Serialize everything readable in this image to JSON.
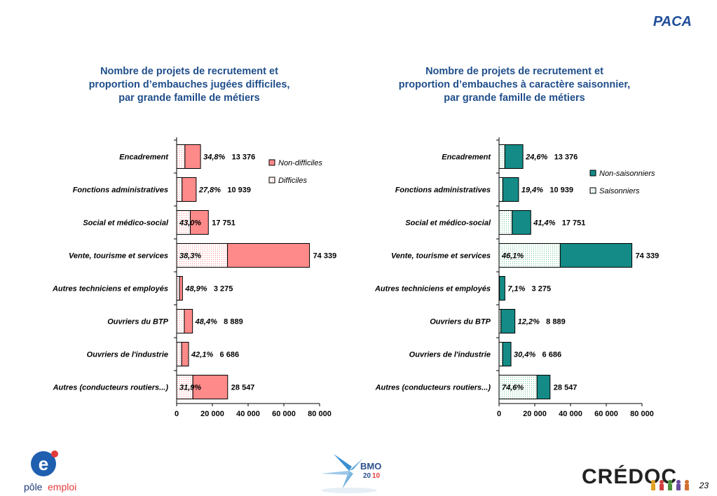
{
  "page": {
    "title": "PACA",
    "page_number": "23"
  },
  "logos": {
    "pole_emploi": {
      "text_line1": "pôle",
      "text_line2": "emploi",
      "icon": "pole-emploi-logo"
    },
    "bmo": {
      "text": "BMO",
      "year_a": "20",
      "year_b": "10",
      "icon": "bmo-logo"
    },
    "credoc": {
      "text": "CRÉDOC",
      "icon": "credoc-logo"
    }
  },
  "colors": {
    "difficult_fill": "#ff8a8a",
    "seasonal_fill": "#148b86",
    "light_pattern": "#ffffff"
  },
  "chart_data": [
    {
      "type": "bar",
      "orientation": "horizontal",
      "stacked": true,
      "title": "Nombre de projets de recrutement et\nproportion d’embauches jugées difficiles,\npar grande famille de métiers",
      "categories": [
        "Encadrement",
        "Fonctions administratives",
        "Social et médico-social",
        "Vente, tourisme et services",
        "Autres techniciens et employés",
        "Ouvriers du BTP",
        "Ouvriers de l'industrie",
        "Autres (conducteurs routiers...)"
      ],
      "totals": [
        13376,
        10939,
        17751,
        74339,
        3275,
        8889,
        6686,
        28547
      ],
      "total_labels": [
        "13 376",
        "10 939",
        "17 751",
        "74 339",
        "3 275",
        "8 889",
        "6 686",
        "28 547"
      ],
      "percent_labels": [
        "34,8%",
        "27,8%",
        "43,0%",
        "38,3%",
        "48,9%",
        "48,4%",
        "42,1%",
        "31,9%"
      ],
      "percent_values": [
        34.8,
        27.8,
        43.0,
        38.3,
        48.9,
        48.4,
        42.1,
        31.9
      ],
      "series": [
        {
          "name": "Non-difficiles",
          "style": "solid",
          "color": "#ff8a8a"
        },
        {
          "name": "Difficiles",
          "style": "pattern",
          "color": "#ffffff"
        }
      ],
      "xlim": [
        0,
        80000
      ],
      "xticks": [
        "0",
        "20 000",
        "40 000",
        "60 000",
        "80 000"
      ],
      "xtick_values": [
        0,
        20000,
        40000,
        60000,
        80000
      ],
      "legend_position": "top-right",
      "grid": false
    },
    {
      "type": "bar",
      "orientation": "horizontal",
      "stacked": true,
      "title": "Nombre de projets de recrutement et\nproportion d’embauches à caractère saisonnier,\npar grande famille de métiers",
      "categories": [
        "Encadrement",
        "Fonctions administratives",
        "Social et médico-social",
        "Vente, tourisme et services",
        "Autres techniciens et employés",
        "Ouvriers du BTP",
        "Ouvriers de l'industrie",
        "Autres (conducteurs routiers...)"
      ],
      "totals": [
        13376,
        10939,
        17751,
        74339,
        3275,
        8889,
        6686,
        28547
      ],
      "total_labels": [
        "13 376",
        "10 939",
        "17 751",
        "74 339",
        "3 275",
        "8 889",
        "6 686",
        "28 547"
      ],
      "percent_labels": [
        "24,6%",
        "19,4%",
        "41,4%",
        "46,1%",
        "7,1%",
        "12,2%",
        "30,4%",
        "74,6%"
      ],
      "percent_values": [
        24.6,
        19.4,
        41.4,
        46.1,
        7.1,
        12.2,
        30.4,
        74.6
      ],
      "series": [
        {
          "name": "Non-saisonniers",
          "style": "solid",
          "color": "#148b86"
        },
        {
          "name": "Saisonniers",
          "style": "pattern",
          "color": "#ffffff"
        }
      ],
      "xlim": [
        0,
        80000
      ],
      "xticks": [
        "0",
        "20 000",
        "40 000",
        "60 000",
        "80 000"
      ],
      "xtick_values": [
        0,
        20000,
        40000,
        60000,
        80000
      ],
      "legend_position": "top-right",
      "grid": false
    }
  ]
}
